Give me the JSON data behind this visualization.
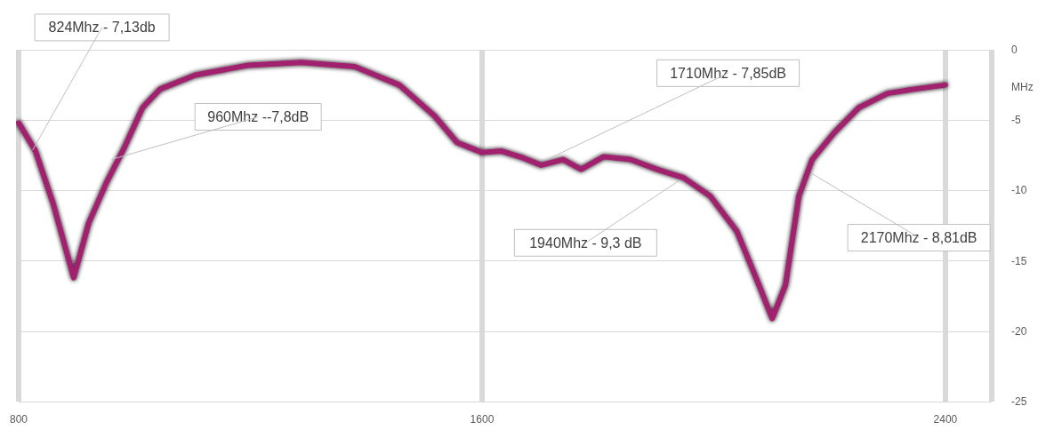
{
  "chart_data": {
    "type": "line",
    "xlabel": "MHz",
    "x": [
      800,
      829,
      860,
      895,
      921,
      952,
      983,
      1014,
      1044,
      1105,
      1197,
      1288,
      1380,
      1457,
      1518,
      1557,
      1600,
      1634,
      1672,
      1702,
      1740,
      1771,
      1810,
      1856,
      1902,
      1948,
      1994,
      2040,
      2078,
      2101,
      2124,
      2147,
      2170,
      2208,
      2251,
      2300,
      2346,
      2400
    ],
    "series": [
      {
        "color": "#a0206e",
        "values": [
          -5.2,
          -7.2,
          -11,
          -16.2,
          -12.3,
          -9.4,
          -6.9,
          -4.1,
          -2.8,
          -1.8,
          -1.1,
          -0.9,
          -1.2,
          -2.5,
          -4.7,
          -6.6,
          -7.3,
          -7.2,
          -7.7,
          -8.2,
          -7.8,
          -8.5,
          -7.6,
          -7.8,
          -8.5,
          -9.1,
          -10.4,
          -12.9,
          -16.7,
          -19.1,
          -16.7,
          -10.4,
          -7.8,
          -5.9,
          -4.1,
          -3.1,
          -2.8,
          -2.5
        ]
      }
    ],
    "xlim": [
      800,
      2480
    ],
    "xticks": [
      800,
      1600,
      2400
    ],
    "ylim": [
      -25,
      0
    ],
    "yticks": [
      -25,
      -20,
      -15,
      -10,
      -5,
      0
    ],
    "grid": true,
    "marker": "none",
    "line_style": "solid",
    "annotations": [
      {
        "text": "824Mhz - 7,13db",
        "x": 824,
        "y": -7.13
      },
      {
        "text": "960Mhz --7,8dB",
        "x": 960,
        "y": -7.8
      },
      {
        "text": "1710Mhz - 7,85dB",
        "x": 1710,
        "y": -7.85
      },
      {
        "text": "1940Mhz - 9,3 dB",
        "x": 1940,
        "y": -9.3
      },
      {
        "text": "2170Mhz - 8,81dB",
        "x": 2170,
        "y": -8.81
      }
    ]
  }
}
